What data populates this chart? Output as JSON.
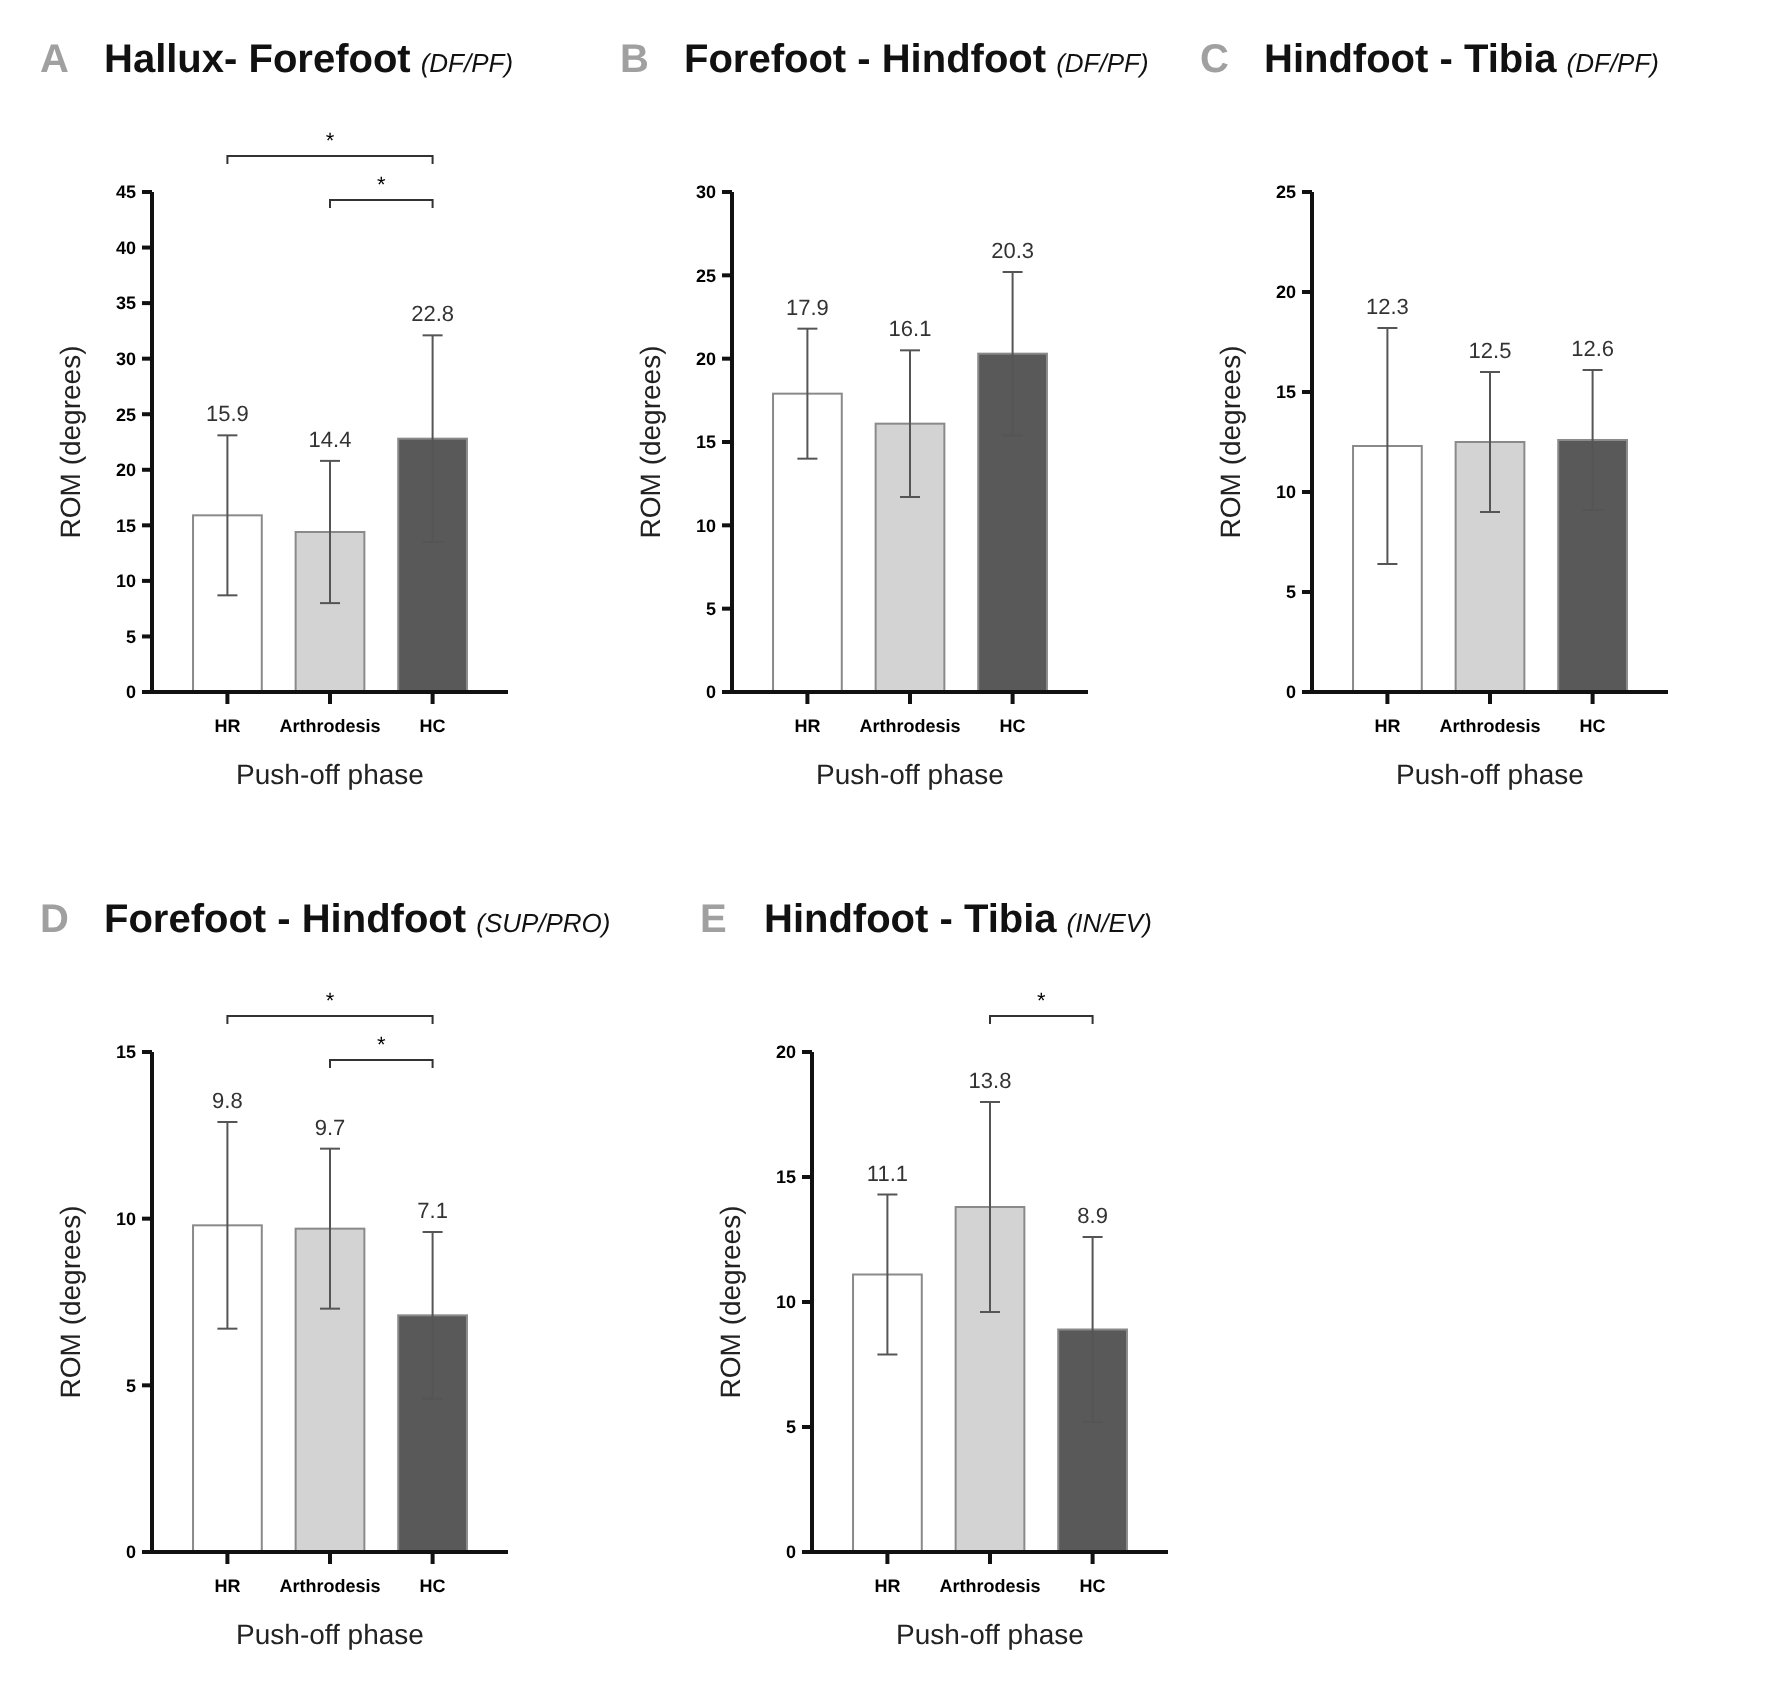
{
  "chart_data": [
    {
      "type": "bar",
      "title": "Hallux- Forefoot",
      "subtitle": "(DF/PF)",
      "xlabel": "Push-off phase",
      "ylabel": "ROM (degrees)",
      "categories": [
        "HR",
        "Arthrodesis",
        "HC"
      ],
      "values": [
        15.9,
        14.4,
        22.8
      ],
      "errors": [
        7.2,
        6.4,
        9.3
      ],
      "colors": [
        "#ffffff",
        "#d3d3d3",
        "#595959"
      ],
      "ylim": [
        0,
        45
      ],
      "yticks": [
        0,
        5,
        10,
        15,
        20,
        25,
        30,
        35,
        40,
        45
      ],
      "annotations": [
        "A",
        "*",
        "*",
        {
          "text": "15.9",
          "x": "HR",
          "y": 23.1
        },
        {
          "text": "14.4",
          "x": "Arthrodesis",
          "y": 20.8
        },
        {
          "text": "22.8",
          "x": "HC",
          "y": 32.1
        }
      ]
    },
    {
      "type": "bar",
      "title": "Forefoot - Hindfoot",
      "subtitle": "(DF/PF)",
      "xlabel": "Push-off phase",
      "ylabel": "ROM (degrees)",
      "categories": [
        "HR",
        "Arthrodesis",
        "HC"
      ],
      "values": [
        17.9,
        16.1,
        20.3
      ],
      "errors": [
        3.9,
        4.4,
        4.9
      ],
      "colors": [
        "#ffffff",
        "#d3d3d3",
        "#595959"
      ],
      "ylim": [
        0,
        30
      ],
      "yticks": [
        0,
        5,
        10,
        15,
        20,
        25,
        30
      ],
      "annotations": [
        "B",
        {
          "text": "17.9",
          "x": "HR",
          "y": 21.8
        },
        {
          "text": "16.1",
          "x": "Arthrodesis",
          "y": 20.5
        },
        {
          "text": "20.3",
          "x": "HC",
          "y": 25.2
        }
      ]
    },
    {
      "type": "bar",
      "title": "Hindfoot - Tibia",
      "subtitle": "(DF/PF)",
      "xlabel": "Push-off phase",
      "ylabel": "ROM (degrees)",
      "categories": [
        "HR",
        "Arthrodesis",
        "HC"
      ],
      "values": [
        12.3,
        12.5,
        12.6
      ],
      "errors": [
        5.9,
        3.5,
        3.5
      ],
      "colors": [
        "#ffffff",
        "#d3d3d3",
        "#595959"
      ],
      "ylim": [
        0,
        25
      ],
      "yticks": [
        0,
        5,
        10,
        15,
        20,
        25
      ],
      "annotations": [
        "C",
        {
          "text": "12.3",
          "x": "HR",
          "y": 18.2
        },
        {
          "text": "12.5",
          "x": "Arthrodesis",
          "y": 16
        },
        {
          "text": "12.6",
          "x": "HC",
          "y": 16.1
        }
      ]
    },
    {
      "type": "bar",
      "title": "Forefoot - Hindfoot",
      "subtitle": "(SUP/PRO)",
      "xlabel": "Push-off phase",
      "ylabel": "ROM (degrees)",
      "categories": [
        "HR",
        "Arthrodesis",
        "HC"
      ],
      "values": [
        9.8,
        9.7,
        7.1
      ],
      "errors": [
        3.1,
        2.4,
        2.5
      ],
      "colors": [
        "#ffffff",
        "#d3d3d3",
        "#595959"
      ],
      "ylim": [
        0,
        15
      ],
      "yticks": [
        0,
        5,
        10,
        15
      ],
      "annotations": [
        "D",
        "*",
        "*",
        {
          "text": "9.8",
          "x": "HR",
          "y": 12.9
        },
        {
          "text": "9.7",
          "x": "Arthrodesis",
          "y": 12.1
        },
        {
          "text": "7.1",
          "x": "HC",
          "y": 9.6
        }
      ]
    },
    {
      "type": "bar",
      "title": "Hindfoot - Tibia",
      "subtitle": "(IN/EV)",
      "xlabel": "Push-off phase",
      "ylabel": "ROM (degrees)",
      "categories": [
        "HR",
        "Arthrodesis",
        "HC"
      ],
      "values": [
        11.1,
        13.8,
        8.9
      ],
      "errors": [
        3.2,
        4.2,
        3.7
      ],
      "colors": [
        "#ffffff",
        "#d3d3d3",
        "#595959"
      ],
      "ylim": [
        0,
        20
      ],
      "yticks": [
        0,
        5,
        10,
        15,
        20
      ],
      "annotations": [
        "E",
        "*",
        {
          "text": "11.1",
          "x": "HR",
          "y": 14.3
        },
        {
          "text": "13.8",
          "x": "Arthrodesis",
          "y": 18
        },
        {
          "text": "8.9",
          "x": "HC",
          "y": 12.6
        }
      ]
    }
  ]
}
